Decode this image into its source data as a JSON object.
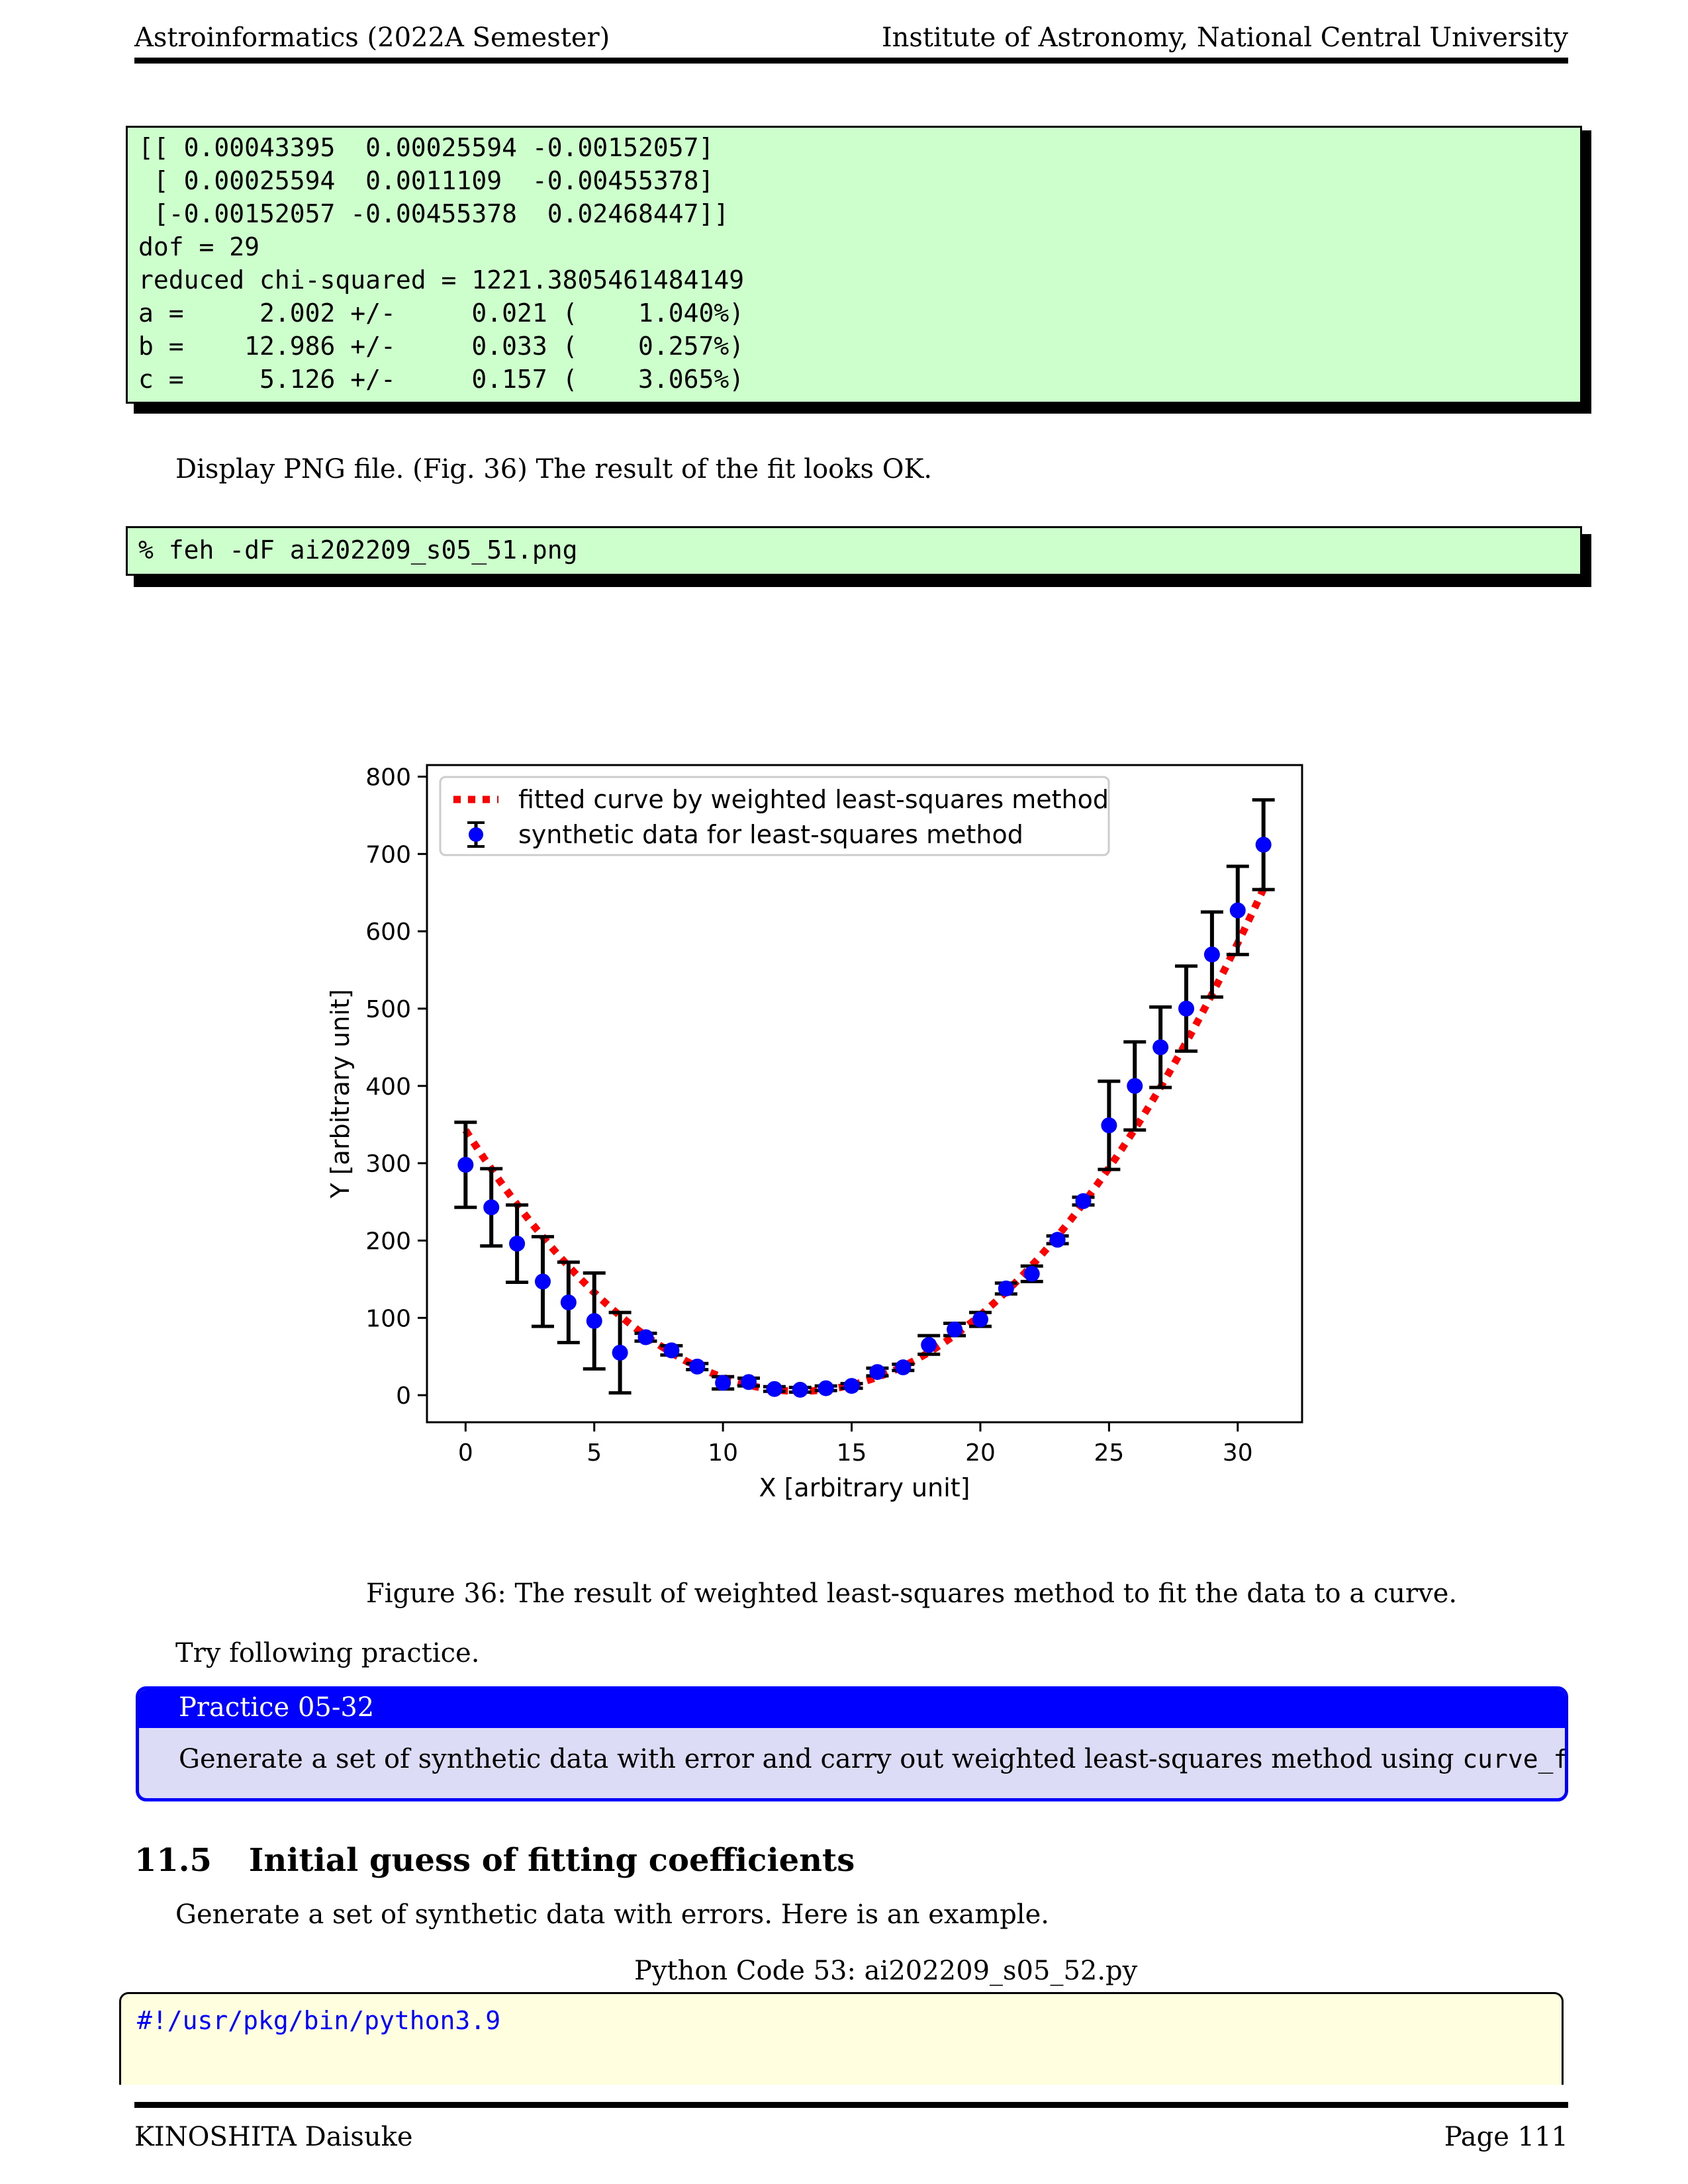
{
  "header": {
    "left": "Astroinformatics (2022A Semester)",
    "right": "Institute of Astronomy, National Central University"
  },
  "output_block": {
    "lines": [
      "[[ 0.00043395  0.00025594 -0.00152057]",
      " [ 0.00025594  0.0011109  -0.00455378]",
      " [-0.00152057 -0.00455378  0.02468447]]",
      "dof = 29",
      "reduced chi-squared = 1221.3805461484149",
      "a =     2.002 +/-     0.021 (    1.040%)",
      "b =    12.986 +/-     0.033 (    0.257%)",
      "c =     5.126 +/-     0.157 (    3.065%)"
    ]
  },
  "para1": "Display PNG file. (Fig. 36) The result of the fit looks OK.",
  "command": "% feh -dF ai202209_s05_51.png",
  "figure": {
    "caption": "Figure 36: The result of weighted least-squares method to fit the data to a curve."
  },
  "chart_data": {
    "type": "scatter",
    "xlabel": "X [arbitrary unit]",
    "ylabel": "Y [arbitrary unit]",
    "xlim": [
      -1.5,
      32.5
    ],
    "ylim": [
      -35,
      815
    ],
    "xticks": [
      0,
      5,
      10,
      15,
      20,
      25,
      30
    ],
    "yticks": [
      0,
      100,
      200,
      300,
      400,
      500,
      600,
      700,
      800
    ],
    "grid": false,
    "legend_position": "top-left",
    "series": [
      {
        "name": "fitted curve by weighted least-squares method",
        "kind": "line",
        "style": "dotted",
        "color": "#ff0000",
        "a": 2.002,
        "b": 12.986,
        "c": 5.126
      },
      {
        "name": "synthetic data for least-squares method",
        "kind": "errorbar",
        "color": "#0000ff",
        "x": [
          0,
          1,
          2,
          3,
          4,
          5,
          6,
          7,
          8,
          9,
          10,
          11,
          12,
          13,
          14,
          15,
          16,
          17,
          18,
          19,
          20,
          21,
          22,
          23,
          24,
          25,
          26,
          27,
          28,
          29,
          30,
          31
        ],
        "y": [
          298,
          243,
          196,
          147,
          120,
          96,
          55,
          75,
          58,
          37,
          16,
          17,
          8,
          7,
          9,
          12,
          30,
          36,
          65,
          85,
          98,
          138,
          157,
          201,
          251,
          349,
          400,
          450,
          500,
          570,
          627,
          712
        ],
        "yerr": [
          55,
          50,
          50,
          58,
          52,
          62,
          52,
          5,
          6,
          4,
          8,
          5,
          3,
          3,
          3,
          3,
          5,
          4,
          12,
          8,
          9,
          7,
          10,
          5,
          5,
          57,
          57,
          52,
          55,
          55,
          57,
          58
        ]
      }
    ]
  },
  "para2": "Try following practice.",
  "practice": {
    "title": "Practice 05-32",
    "body_before": "Generate a set of synthetic data with error and carry out weighted least-squares method using ",
    "body_code": "curve_fit",
    "body_after": "."
  },
  "section": {
    "number": "11.5",
    "title": "Initial guess of fitting coefficients"
  },
  "para3": "Generate a set of synthetic data with errors. Here is an example.",
  "code_caption": "Python Code 53: ai202209_s05_52.py",
  "python_line": "#!/usr/pkg/bin/python3.9",
  "footer": {
    "left": "KINOSHITA Daisuke",
    "right": "Page 111"
  }
}
